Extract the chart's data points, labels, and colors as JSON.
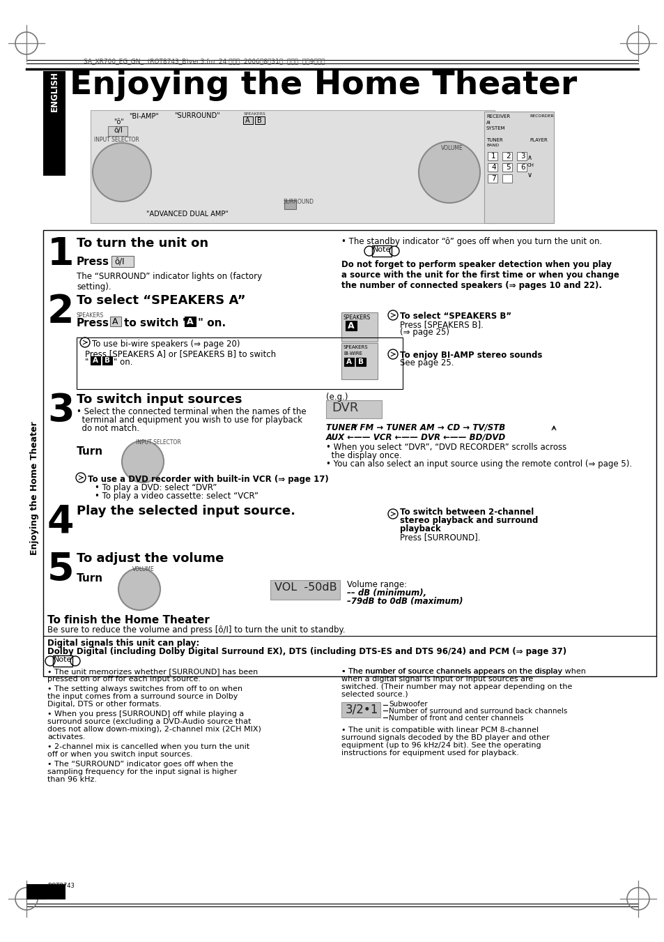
{
  "page_bg": "#ffffff",
  "title": "Enjoying the Home Theater",
  "english_text": "ENGLISH",
  "sidebar_text": "Enjoying the Home Theater",
  "page_number": "24",
  "header_text": "SA_XR700_EG_GN_  (RQT8743_B)ver.3.fm  24 ページ  2006年8月31日  木曜日  午前9時７分",
  "step1_head": "To turn the unit on",
  "step1_press_body": "The “SURROUND” indicator lights on (factory\nsetting).",
  "step1_standby": "• The standby indicator “ô” goes off when you turn the unit on.",
  "step1_note_body": "Do not forget to perform speaker detection when you play\na source with the unit for the first time or when you change\nthe number of connected speakers (⇒ pages 10 and 22).",
  "step2_head": "To select “SPEAKERS A”",
  "step2_press_line": "Press      to switch “ ” on.",
  "step2_speakers_b_head": "→ To select “SPEAKERS B”",
  "step2_speakers_b_body": "Press [SPEAKERS B].\n(⇒ page 25)",
  "step2_biwire_head": "→ To use bi-wire speakers (⇒ page 20)",
  "step2_biwire_body": "Press [SPEAKERS A] or [SPEAKERS B] to switch\n“   A   B   ” on.",
  "step2_biamp_head": "→ To enjoy BI-AMP stereo sounds",
  "step2_biamp_body": "See page 25.",
  "step3_head": "To switch input sources",
  "step3_body": "• Select the connected terminal when the names of the\nterminal and equipment you wish to use for playback\ndo not match.",
  "step3_eg": "(e.g.)",
  "step3_flow1": "TUNER FM → TUNER AM → CD → TV/STB",
  "step3_flow2": "AUX ←—— VCR ←—— DVR ←—— BD/DVD",
  "step3_dvr1": "• When you select “DVR”, “DVD RECORDER” scrolls across",
  "step3_dvr2": "  the display once.",
  "step3_remote": "• You can also select an input source using the remote control (⇒ page 5).",
  "step3_dvd_head": "→ To use a DVD recorder with built-in VCR (⇒ page 17)",
  "step3_dvd_b1": "• To play a DVD: select “DVR”",
  "step3_dvd_b2": "• To play a video cassette: select “VCR”",
  "step4_head": "Play the selected input source.",
  "step4_surround_head": "→ To switch between 2-channel\n   stereo playback and surround\n   playback",
  "step4_surround_body": "Press [SURROUND].",
  "step5_head": "To adjust the volume",
  "step5_vol_range": "Volume range:\n–– dB (minimum),\n–79dB to 0dB (maximum)",
  "finish_head": "To finish the Home Theater",
  "finish_body": "Be sure to reduce the volume and press [ô/I] to turn the unit to standby.",
  "digital_head": "Digital signals this unit can play:",
  "digital_body": "Dolby Digital (including Dolby Digital Surround EX), DTS (including DTS-ES and DTS 96/24) and PCM (⇒ page 37)",
  "note2_left": [
    "• The unit memorizes whether [SURROUND] has been pressed on or off for each input source.",
    "• The setting always switches from off to on when the input comes from a surround source in Dolby Digital, DTS or other formats.",
    "• When you press [SURROUND] off while playing a surround source (excluding a DVD-Audio source that does not allow down-mixing), 2-channel mix (2CH MIX) activates.",
    "• 2-channel mix is cancelled when you turn the unit off or when you switch input sources.",
    "• The “SURROUND” indicator goes off when the sampling frequency for the input signal is higher than 96 kHz."
  ],
  "note2_right1": "• The number of source channels appears on the display when a digital signal is input or input sources are switched. (Their number may not appear depending on the selected source.)",
  "note2_right2": "• The unit is compatible with linear PCM 8-channel surround signals decoded by the BD player and other equipment (up to 96 kHz/24 bit). See the operating instructions for equipment used for playback.",
  "subwoofer_label": "Subwoofer",
  "surround_label": "Number of surround and surround back channels",
  "front_label": "Number of front and center channels"
}
